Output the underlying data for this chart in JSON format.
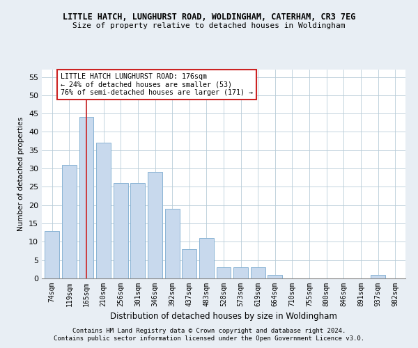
{
  "title": "LITTLE HATCH, LUNGHURST ROAD, WOLDINGHAM, CATERHAM, CR3 7EG",
  "subtitle": "Size of property relative to detached houses in Woldingham",
  "xlabel": "Distribution of detached houses by size in Woldingham",
  "ylabel": "Number of detached properties",
  "categories": [
    "74sqm",
    "119sqm",
    "165sqm",
    "210sqm",
    "256sqm",
    "301sqm",
    "346sqm",
    "392sqm",
    "437sqm",
    "483sqm",
    "528sqm",
    "573sqm",
    "619sqm",
    "664sqm",
    "710sqm",
    "755sqm",
    "800sqm",
    "846sqm",
    "891sqm",
    "937sqm",
    "982sqm"
  ],
  "values": [
    13,
    31,
    44,
    37,
    26,
    26,
    29,
    19,
    8,
    11,
    3,
    3,
    3,
    1,
    0,
    0,
    0,
    0,
    0,
    1,
    0
  ],
  "bar_color": "#c8d9ed",
  "bar_edge_color": "#8ab4d4",
  "vline_x_index": 2,
  "vline_color": "#cc2222",
  "annotation_text": "LITTLE HATCH LUNGHURST ROAD: 176sqm\n← 24% of detached houses are smaller (53)\n76% of semi-detached houses are larger (171) →",
  "annotation_box_color": "#ffffff",
  "annotation_box_edge": "#cc2222",
  "ylim": [
    0,
    57
  ],
  "yticks": [
    0,
    5,
    10,
    15,
    20,
    25,
    30,
    35,
    40,
    45,
    50,
    55
  ],
  "footer1": "Contains HM Land Registry data © Crown copyright and database right 2024.",
  "footer2": "Contains public sector information licensed under the Open Government Licence v3.0.",
  "bg_color": "#e8eef4",
  "plot_bg_color": "#ffffff",
  "grid_color": "#b8ccd8"
}
